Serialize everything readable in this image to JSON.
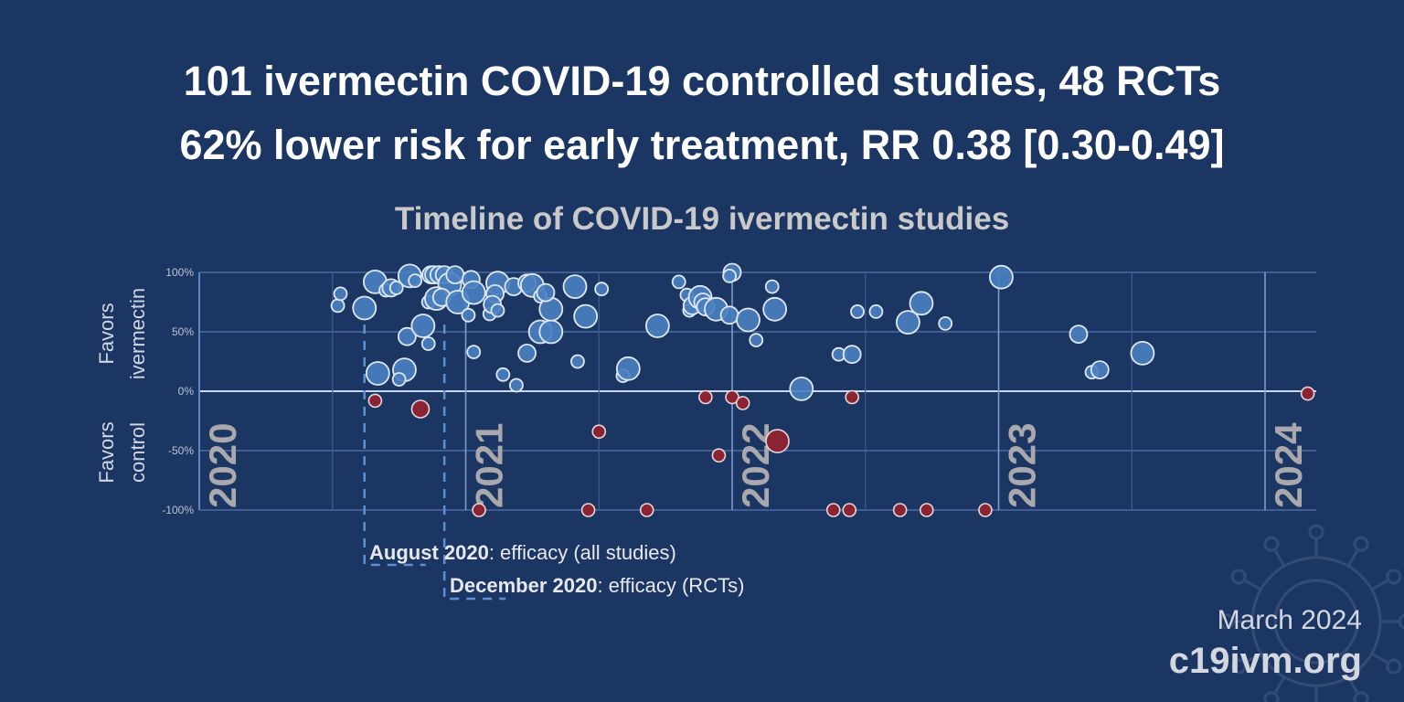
{
  "header": {
    "title_line1": "101 ivermectin COVID-19 controlled studies, 48 RCTs",
    "title_line2": "62% lower risk for early treatment, RR 0.38 [0.30-0.49]"
  },
  "footer": {
    "date": "March 2024",
    "site": "c19ivm.org"
  },
  "colors": {
    "background": "#1c3663",
    "favors_ivermectin": "#4a7fc0",
    "favors_control": "#8a2432",
    "grid": "#4d6aa3"
  },
  "chart_data": {
    "type": "scatter",
    "title": "Timeline of COVID-19 ivermectin studies",
    "ylabel_top": [
      "Favors",
      "ivermectin"
    ],
    "ylabel_bottom": [
      "Favors",
      "control"
    ],
    "yticks": [
      "100%",
      "50%",
      "0%",
      "-50%",
      "-100%"
    ],
    "ytick_values": [
      100,
      50,
      0,
      -50,
      -100
    ],
    "ylim": [
      -100,
      100
    ],
    "xlim": [
      2020,
      2024.2
    ],
    "xticks": [
      "2020",
      "2021",
      "2022",
      "2023",
      "2024"
    ],
    "grid": true,
    "point_format": [
      "year",
      "percent_lower_risk",
      "relative_weight"
    ],
    "points_favor_ivermectin": [
      [
        2020.52,
        72,
        1
      ],
      [
        2020.53,
        82,
        1
      ],
      [
        2020.62,
        70,
        3
      ],
      [
        2020.66,
        92,
        3
      ],
      [
        2020.67,
        15,
        3
      ],
      [
        2020.7,
        85,
        1
      ],
      [
        2020.72,
        87,
        2
      ],
      [
        2020.74,
        87,
        1
      ],
      [
        2020.77,
        18,
        3
      ],
      [
        2020.75,
        10,
        1
      ],
      [
        2020.78,
        46,
        2
      ],
      [
        2020.79,
        97,
        3
      ],
      [
        2020.81,
        93,
        1
      ],
      [
        2020.84,
        55,
        3
      ],
      [
        2020.86,
        40,
        1
      ],
      [
        2020.86,
        75,
        1
      ],
      [
        2020.87,
        98,
        2
      ],
      [
        2020.88,
        98,
        2
      ],
      [
        2020.9,
        98,
        2
      ],
      [
        2020.92,
        98,
        2
      ],
      [
        2020.94,
        90,
        3
      ],
      [
        2020.89,
        78,
        3
      ],
      [
        2020.91,
        79,
        2
      ],
      [
        2020.97,
        75,
        3
      ],
      [
        2020.96,
        98,
        2
      ],
      [
        2021.02,
        94,
        2
      ],
      [
        2021.03,
        83,
        3
      ],
      [
        2021.01,
        64,
        1
      ],
      [
        2021.03,
        33,
        1
      ],
      [
        2021.09,
        65,
        1
      ],
      [
        2021.12,
        91,
        3
      ],
      [
        2021.11,
        82,
        2
      ],
      [
        2021.1,
        73,
        2
      ],
      [
        2021.12,
        68,
        1
      ],
      [
        2021.14,
        14,
        1
      ],
      [
        2021.19,
        5,
        1
      ],
      [
        2021.18,
        88,
        2
      ],
      [
        2021.23,
        91,
        2
      ],
      [
        2021.25,
        89,
        3
      ],
      [
        2021.23,
        32,
        2
      ],
      [
        2021.28,
        80,
        1
      ],
      [
        2021.28,
        50,
        3
      ],
      [
        2021.32,
        50,
        3
      ],
      [
        2021.32,
        69,
        3
      ],
      [
        2021.3,
        83,
        2
      ],
      [
        2021.41,
        88,
        3
      ],
      [
        2021.42,
        25,
        1
      ],
      [
        2021.45,
        63,
        3
      ],
      [
        2021.51,
        86,
        1
      ],
      [
        2021.59,
        13,
        1
      ],
      [
        2021.61,
        19,
        3
      ],
      [
        2021.72,
        55,
        3
      ],
      [
        2021.8,
        92,
        1
      ],
      [
        2021.83,
        81,
        1
      ],
      [
        2021.84,
        68,
        1
      ],
      [
        2021.85,
        72,
        2
      ],
      [
        2021.88,
        79,
        3
      ],
      [
        2021.89,
        75,
        2
      ],
      [
        2021.9,
        71,
        2
      ],
      [
        2021.94,
        69,
        3
      ],
      [
        2022.0,
        100,
        2
      ],
      [
        2021.99,
        97,
        1
      ],
      [
        2021.99,
        64,
        2
      ],
      [
        2022.06,
        60,
        3
      ],
      [
        2022.09,
        43,
        1
      ],
      [
        2022.15,
        88,
        1
      ],
      [
        2022.16,
        69,
        3
      ],
      [
        2022.26,
        2,
        3
      ],
      [
        2022.4,
        31,
        1
      ],
      [
        2022.45,
        31,
        2
      ],
      [
        2022.47,
        67,
        1
      ],
      [
        2022.54,
        67,
        1
      ],
      [
        2022.66,
        58,
        3
      ],
      [
        2022.71,
        74,
        3
      ],
      [
        2022.8,
        57,
        1
      ],
      [
        2023.01,
        96,
        3
      ],
      [
        2023.3,
        48,
        2
      ],
      [
        2023.35,
        16,
        1
      ],
      [
        2023.38,
        18,
        2
      ],
      [
        2023.54,
        32,
        3
      ]
    ],
    "points_favor_control": [
      [
        2020.66,
        -8,
        1
      ],
      [
        2020.83,
        -15,
        2
      ],
      [
        2021.05,
        -100,
        1
      ],
      [
        2021.46,
        -100,
        1
      ],
      [
        2021.5,
        -34,
        1
      ],
      [
        2021.68,
        -100,
        1
      ],
      [
        2021.9,
        -5,
        1
      ],
      [
        2021.95,
        -54,
        1
      ],
      [
        2022.0,
        -5,
        1
      ],
      [
        2022.04,
        -10,
        1
      ],
      [
        2022.17,
        -42,
        3
      ],
      [
        2022.38,
        -100,
        1
      ],
      [
        2022.44,
        -100,
        1
      ],
      [
        2022.45,
        -5,
        1
      ],
      [
        2022.63,
        -100,
        1
      ],
      [
        2022.73,
        -100,
        1
      ],
      [
        2022.95,
        -100,
        1
      ],
      [
        2024.16,
        -2,
        1
      ]
    ],
    "annotations": [
      {
        "date": 2020.62,
        "bold": "August 2020",
        "text": ": efficacy (all studies)"
      },
      {
        "date": 2020.92,
        "bold": "December 2020",
        "text": ": efficacy (RCTs)"
      }
    ]
  }
}
